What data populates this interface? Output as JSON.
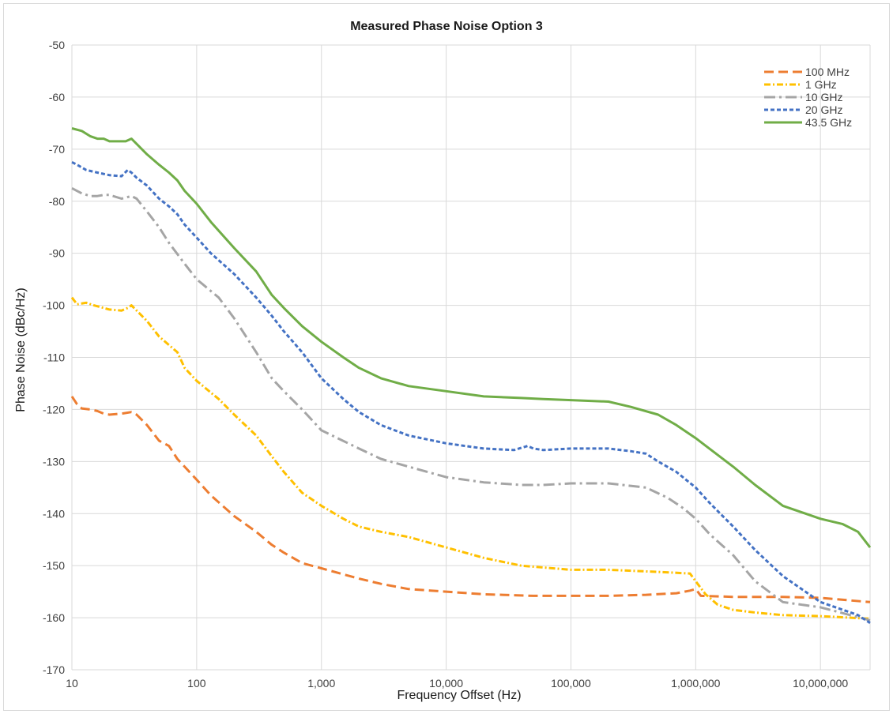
{
  "chart_data": {
    "type": "line",
    "title": "Measured Phase Noise Option 3",
    "xlabel": "Frequency Offset (Hz)",
    "ylabel": "Phase Noise (dBc/Hz)",
    "x_scale": "log",
    "xlim": [
      10,
      25000000
    ],
    "ylim": [
      -170,
      -50
    ],
    "x_ticks": [
      10,
      100,
      1000,
      10000,
      100000,
      1000000,
      10000000
    ],
    "x_tick_labels": [
      "10",
      "100",
      "1,000",
      "10,000",
      "100,000",
      "1,000,000",
      "10,000,000"
    ],
    "y_ticks": [
      -170,
      -160,
      -150,
      -140,
      -130,
      -120,
      -110,
      -100,
      -90,
      -80,
      -70,
      -60,
      -50
    ],
    "y_tick_labels": [
      "-170",
      "-160",
      "-150",
      "-140",
      "-130",
      "-120",
      "-110",
      "-100",
      "-90",
      "-80",
      "-70",
      "-60",
      "-50"
    ],
    "grid": true,
    "legend_position": "top-right",
    "series": [
      {
        "name": "100 MHz",
        "color": "#ed7d31",
        "dash": "12,6",
        "points": [
          [
            10,
            -117.5
          ],
          [
            11,
            -119
          ],
          [
            12,
            -119.8
          ],
          [
            14,
            -120
          ],
          [
            16,
            -120.3
          ],
          [
            18,
            -120.8
          ],
          [
            20,
            -121
          ],
          [
            25,
            -120.8
          ],
          [
            30,
            -120.5
          ],
          [
            33,
            -121
          ],
          [
            40,
            -123
          ],
          [
            50,
            -126
          ],
          [
            60,
            -127
          ],
          [
            70,
            -129.5
          ],
          [
            80,
            -131
          ],
          [
            100,
            -133.5
          ],
          [
            130,
            -136.5
          ],
          [
            200,
            -140.5
          ],
          [
            300,
            -143.5
          ],
          [
            400,
            -146
          ],
          [
            500,
            -147.5
          ],
          [
            700,
            -149.5
          ],
          [
            1000,
            -150.5
          ],
          [
            2000,
            -152.5
          ],
          [
            3000,
            -153.5
          ],
          [
            5000,
            -154.5
          ],
          [
            10000,
            -155
          ],
          [
            20000,
            -155.5
          ],
          [
            50000,
            -155.8
          ],
          [
            100000,
            -155.8
          ],
          [
            200000,
            -155.8
          ],
          [
            400000,
            -155.6
          ],
          [
            700000,
            -155.3
          ],
          [
            900000,
            -154.8
          ],
          [
            1000000,
            -154.5
          ],
          [
            1100000,
            -155.8
          ],
          [
            2000000,
            -156
          ],
          [
            5000000,
            -156
          ],
          [
            10000000,
            -156.2
          ],
          [
            25000000,
            -157
          ]
        ]
      },
      {
        "name": "1 GHz",
        "color": "#ffc000",
        "dash": "8,3,2,3",
        "points": [
          [
            10,
            -98.5
          ],
          [
            11,
            -99.8
          ],
          [
            13,
            -99.5
          ],
          [
            15,
            -100
          ],
          [
            18,
            -100.5
          ],
          [
            20,
            -100.8
          ],
          [
            25,
            -101
          ],
          [
            28,
            -100.5
          ],
          [
            30,
            -100
          ],
          [
            33,
            -101
          ],
          [
            40,
            -103
          ],
          [
            50,
            -106
          ],
          [
            70,
            -109
          ],
          [
            80,
            -112
          ],
          [
            100,
            -114.5
          ],
          [
            150,
            -118
          ],
          [
            200,
            -121
          ],
          [
            300,
            -125
          ],
          [
            400,
            -129
          ],
          [
            500,
            -132
          ],
          [
            700,
            -136
          ],
          [
            1000,
            -138.5
          ],
          [
            1500,
            -141
          ],
          [
            2000,
            -142.5
          ],
          [
            3000,
            -143.5
          ],
          [
            5000,
            -144.5
          ],
          [
            10000,
            -146.5
          ],
          [
            20000,
            -148.5
          ],
          [
            40000,
            -150
          ],
          [
            100000,
            -150.8
          ],
          [
            200000,
            -150.8
          ],
          [
            500000,
            -151.2
          ],
          [
            900000,
            -151.5
          ],
          [
            1000000,
            -153
          ],
          [
            1200000,
            -155.5
          ],
          [
            1500000,
            -157.5
          ],
          [
            2000000,
            -158.5
          ],
          [
            3000000,
            -159
          ],
          [
            5000000,
            -159.5
          ],
          [
            10000000,
            -159.7
          ],
          [
            25000000,
            -160.2
          ]
        ]
      },
      {
        "name": "10 GHz",
        "color": "#a5a5a5",
        "dash": "14,5,3,5",
        "points": [
          [
            10,
            -77.5
          ],
          [
            12,
            -78.5
          ],
          [
            14,
            -79
          ],
          [
            16,
            -79
          ],
          [
            18,
            -78.8
          ],
          [
            20,
            -78.8
          ],
          [
            25,
            -79.5
          ],
          [
            28,
            -79.2
          ],
          [
            30,
            -79
          ],
          [
            33,
            -79.5
          ],
          [
            40,
            -82
          ],
          [
            50,
            -85
          ],
          [
            60,
            -88
          ],
          [
            80,
            -92
          ],
          [
            100,
            -95
          ],
          [
            150,
            -98.5
          ],
          [
            200,
            -102.5
          ],
          [
            300,
            -109
          ],
          [
            400,
            -114
          ],
          [
            500,
            -116.5
          ],
          [
            700,
            -120
          ],
          [
            1000,
            -124
          ],
          [
            2000,
            -127.5
          ],
          [
            3000,
            -129.5
          ],
          [
            5000,
            -131
          ],
          [
            10000,
            -133
          ],
          [
            20000,
            -134
          ],
          [
            40000,
            -134.5
          ],
          [
            60000,
            -134.5
          ],
          [
            100000,
            -134.2
          ],
          [
            200000,
            -134.2
          ],
          [
            400000,
            -135
          ],
          [
            600000,
            -137
          ],
          [
            800000,
            -139
          ],
          [
            1000000,
            -141
          ],
          [
            1300000,
            -144
          ],
          [
            2000000,
            -148
          ],
          [
            3000000,
            -153
          ],
          [
            5000000,
            -157
          ],
          [
            10000000,
            -158
          ],
          [
            25000000,
            -160.5
          ]
        ]
      },
      {
        "name": "20 GHz",
        "color": "#4472c4",
        "dash": "5,3",
        "points": [
          [
            10,
            -72.5
          ],
          [
            11,
            -73
          ],
          [
            13,
            -74
          ],
          [
            16,
            -74.5
          ],
          [
            20,
            -75
          ],
          [
            25,
            -75.2
          ],
          [
            28,
            -74
          ],
          [
            30,
            -74.5
          ],
          [
            33,
            -75.5
          ],
          [
            40,
            -77
          ],
          [
            50,
            -79.5
          ],
          [
            60,
            -81
          ],
          [
            70,
            -82.5
          ],
          [
            80,
            -84.5
          ],
          [
            100,
            -87
          ],
          [
            130,
            -90
          ],
          [
            200,
            -94
          ],
          [
            300,
            -98.5
          ],
          [
            400,
            -102
          ],
          [
            500,
            -105
          ],
          [
            700,
            -109
          ],
          [
            1000,
            -114
          ],
          [
            1500,
            -118
          ],
          [
            2000,
            -120.5
          ],
          [
            3000,
            -123
          ],
          [
            5000,
            -125
          ],
          [
            10000,
            -126.5
          ],
          [
            20000,
            -127.5
          ],
          [
            35000,
            -127.8
          ],
          [
            45000,
            -127
          ],
          [
            50000,
            -127.5
          ],
          [
            60000,
            -127.8
          ],
          [
            100000,
            -127.5
          ],
          [
            200000,
            -127.5
          ],
          [
            300000,
            -128
          ],
          [
            400000,
            -128.5
          ],
          [
            500000,
            -130
          ],
          [
            700000,
            -132
          ],
          [
            1000000,
            -135
          ],
          [
            1300000,
            -138
          ],
          [
            2000000,
            -142.5
          ],
          [
            3000000,
            -147
          ],
          [
            5000000,
            -152
          ],
          [
            10000000,
            -157
          ],
          [
            20000000,
            -159.5
          ],
          [
            25000000,
            -161
          ]
        ]
      },
      {
        "name": "43.5 GHz",
        "color": "#70ad47",
        "dash": "",
        "points": [
          [
            10,
            -66
          ],
          [
            12,
            -66.5
          ],
          [
            14,
            -67.5
          ],
          [
            16,
            -68
          ],
          [
            18,
            -68
          ],
          [
            20,
            -68.5
          ],
          [
            22,
            -68.5
          ],
          [
            25,
            -68.5
          ],
          [
            27,
            -68.5
          ],
          [
            30,
            -68
          ],
          [
            33,
            -69
          ],
          [
            40,
            -71
          ],
          [
            50,
            -73
          ],
          [
            60,
            -74.5
          ],
          [
            70,
            -76
          ],
          [
            80,
            -78
          ],
          [
            100,
            -80.5
          ],
          [
            130,
            -84
          ],
          [
            200,
            -89
          ],
          [
            300,
            -93.5
          ],
          [
            400,
            -98
          ],
          [
            500,
            -100.5
          ],
          [
            700,
            -104
          ],
          [
            1000,
            -107
          ],
          [
            1500,
            -110
          ],
          [
            2000,
            -112
          ],
          [
            3000,
            -114
          ],
          [
            5000,
            -115.5
          ],
          [
            10000,
            -116.5
          ],
          [
            20000,
            -117.5
          ],
          [
            40000,
            -117.8
          ],
          [
            60000,
            -118
          ],
          [
            100000,
            -118.2
          ],
          [
            200000,
            -118.5
          ],
          [
            300000,
            -119.5
          ],
          [
            500000,
            -121
          ],
          [
            700000,
            -123
          ],
          [
            1000000,
            -125.5
          ],
          [
            2000000,
            -131
          ],
          [
            3000000,
            -134.5
          ],
          [
            5000000,
            -138.5
          ],
          [
            10000000,
            -141
          ],
          [
            15000000,
            -142
          ],
          [
            20000000,
            -143.5
          ],
          [
            25000000,
            -146.5
          ]
        ]
      }
    ]
  }
}
